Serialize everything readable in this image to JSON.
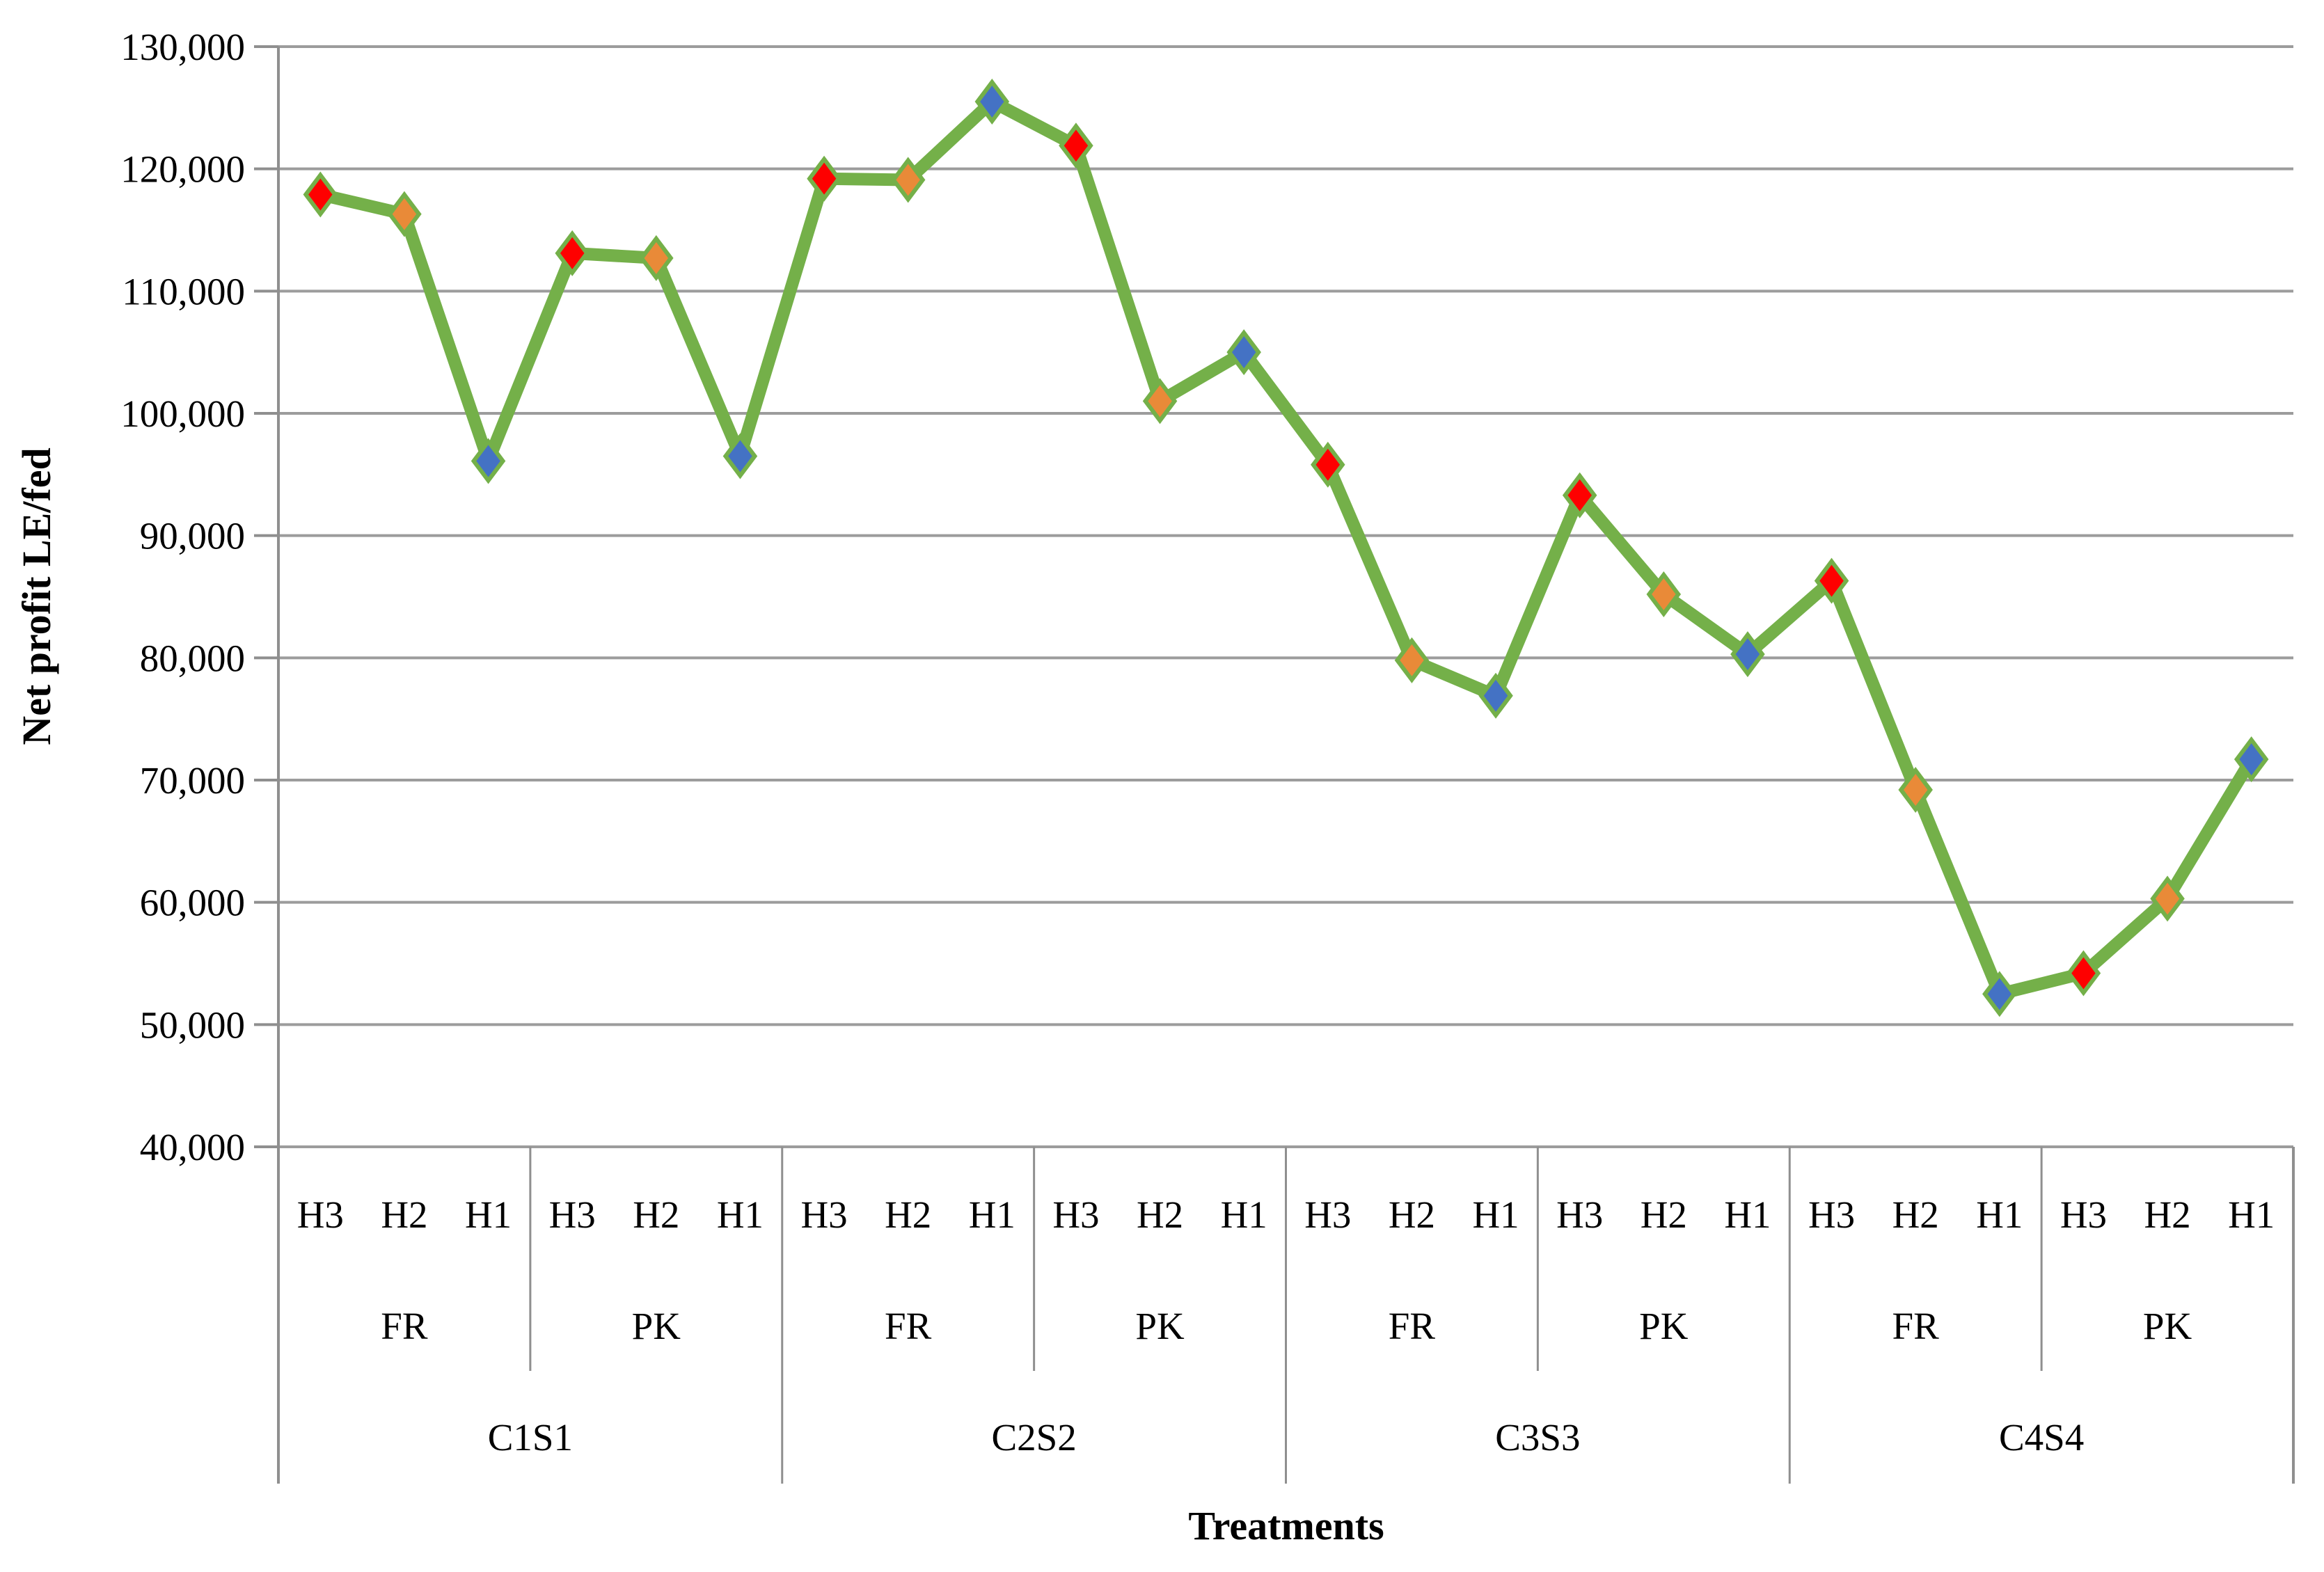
{
  "chart_data": {
    "type": "line",
    "title": "",
    "ylabel": "Net profit LE/fed",
    "xlabel": "Treatments",
    "ylim": [
      40000,
      130000
    ],
    "ytick_step": 10000,
    "ytick_labels": [
      "130,000",
      "120,000",
      "110,000",
      "100,000",
      "90,000",
      "80,000",
      "70,000",
      "60,000",
      "50,000",
      "40,000"
    ],
    "grid": true,
    "legend": "none",
    "line_color": "#74B049",
    "marker_shape": "diamond",
    "marker_colors_by_level": {
      "H3": "#FE0000",
      "H2": "#E98A38",
      "H1": "#4472C4"
    },
    "groups": [
      {
        "label": "C1S1",
        "subgroups": [
          {
            "label": "FR",
            "points": [
              {
                "label": "H3",
                "value": 117900
              },
              {
                "label": "H2",
                "value": 116300
              },
              {
                "label": "H1",
                "value": 96100
              }
            ]
          },
          {
            "label": "PK",
            "points": [
              {
                "label": "H3",
                "value": 113100
              },
              {
                "label": "H2",
                "value": 112700
              },
              {
                "label": "H1",
                "value": 96500
              }
            ]
          }
        ]
      },
      {
        "label": "C2S2",
        "subgroups": [
          {
            "label": "FR",
            "points": [
              {
                "label": "H3",
                "value": 119200
              },
              {
                "label": "H2",
                "value": 119100
              },
              {
                "label": "H1",
                "value": 125500
              }
            ]
          },
          {
            "label": "PK",
            "points": [
              {
                "label": "H3",
                "value": 121900
              },
              {
                "label": "H2",
                "value": 101000
              },
              {
                "label": "H1",
                "value": 105000
              }
            ]
          }
        ]
      },
      {
        "label": "C3S3",
        "subgroups": [
          {
            "label": "FR",
            "points": [
              {
                "label": "H3",
                "value": 95800
              },
              {
                "label": "H2",
                "value": 79800
              },
              {
                "label": "H1",
                "value": 76900
              }
            ]
          },
          {
            "label": "PK",
            "points": [
              {
                "label": "H3",
                "value": 93300
              },
              {
                "label": "H2",
                "value": 85200
              },
              {
                "label": "H1",
                "value": 80300
              }
            ]
          }
        ]
      },
      {
        "label": "C4S4",
        "subgroups": [
          {
            "label": "FR",
            "points": [
              {
                "label": "H3",
                "value": 86300
              },
              {
                "label": "H2",
                "value": 69200
              },
              {
                "label": "H1",
                "value": 52500
              }
            ]
          },
          {
            "label": "PK",
            "points": [
              {
                "label": "H3",
                "value": 54200
              },
              {
                "label": "H2",
                "value": 60300
              },
              {
                "label": "H1",
                "value": 71700
              }
            ]
          }
        ]
      }
    ]
  },
  "colors": {
    "background": "#FFFFFF",
    "gridline": "#9C9C9C",
    "axis_line": "#8F8F8F",
    "label_text": "#000000"
  }
}
